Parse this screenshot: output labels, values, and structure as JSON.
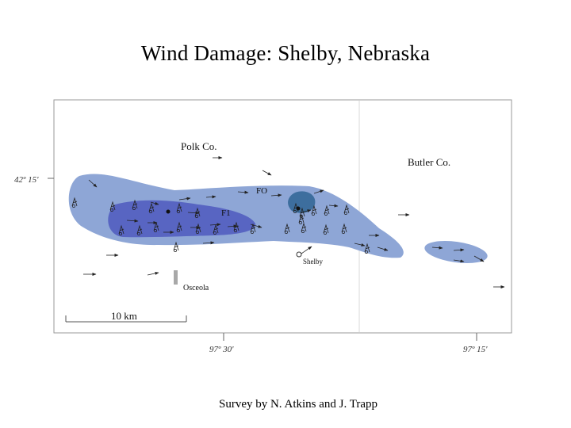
{
  "title": "Wind Damage:  Shelby, Nebraska",
  "credit": "Survey by N. Atkins and J. Trapp",
  "map": {
    "counties": {
      "west": "Polk Co.",
      "east": "Butler Co."
    },
    "places": {
      "shelby": "Shelby",
      "osceola": "Osceola"
    },
    "intensity_labels": {
      "fo": "FO",
      "f1": "F1"
    },
    "coordinates": {
      "latitude": "42º 15'",
      "longitude_left": "97º 30'",
      "longitude_right": "97º 15'"
    },
    "scale_label": "10 km",
    "colors": {
      "outer_swath": "#8ea6d6",
      "f1_zone": "#5865c2",
      "fo_zone": "#3d6e9e",
      "frame": "#9a9a9a",
      "osceola_marker": "#a8a8a8"
    }
  }
}
